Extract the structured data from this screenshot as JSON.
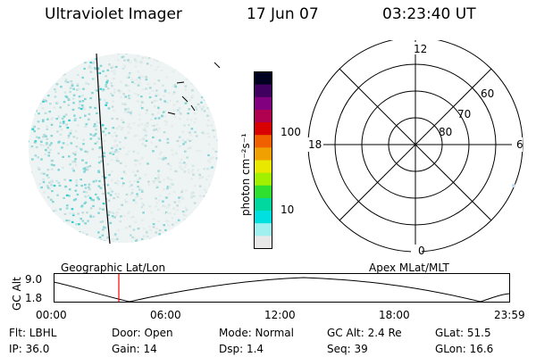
{
  "header": {
    "title": "Ultraviolet Imager",
    "date": "17 Jun 07",
    "time": "03:23:40 UT"
  },
  "colorbar": {
    "label": "photon cm⁻²s⁻¹",
    "ticks": [
      "100",
      "10"
    ],
    "colors": [
      "#000020",
      "#400060",
      "#800080",
      "#b00050",
      "#d80000",
      "#f06000",
      "#f0a000",
      "#e8e800",
      "#a0f000",
      "#30e030",
      "#00d8a0",
      "#00e0e0",
      "#a0f0f0",
      "#e8e8e8"
    ]
  },
  "left_panel": {
    "label": "Geographic Lat/Lon"
  },
  "polar_grid": {
    "mlt_labels": {
      "top": "12",
      "left": "18",
      "right": "6",
      "bottom": "0"
    },
    "lat_labels": [
      "60",
      "70",
      "80"
    ],
    "label": "Apex MLat/MLT"
  },
  "altitude_plot": {
    "y_label": "GC Alt",
    "y_ticks": [
      "9.0",
      "1.8"
    ],
    "x_ticks": [
      "00:00",
      "06:00",
      "12:00",
      "18:00",
      "23:59"
    ],
    "marker_color": "#ff0000"
  },
  "info": {
    "flt": "Flt: LBHL",
    "door": "Door: Open",
    "mode": "Mode: Normal",
    "gc_alt": "GC Alt: 2.4 Re",
    "glat": "GLat: 51.5",
    "ip": "IP: 36.0",
    "gain": "Gain: 14",
    "dsp": "Dsp: 1.4",
    "seq": "Seq: 39",
    "glon": "GLon: 16.6"
  }
}
